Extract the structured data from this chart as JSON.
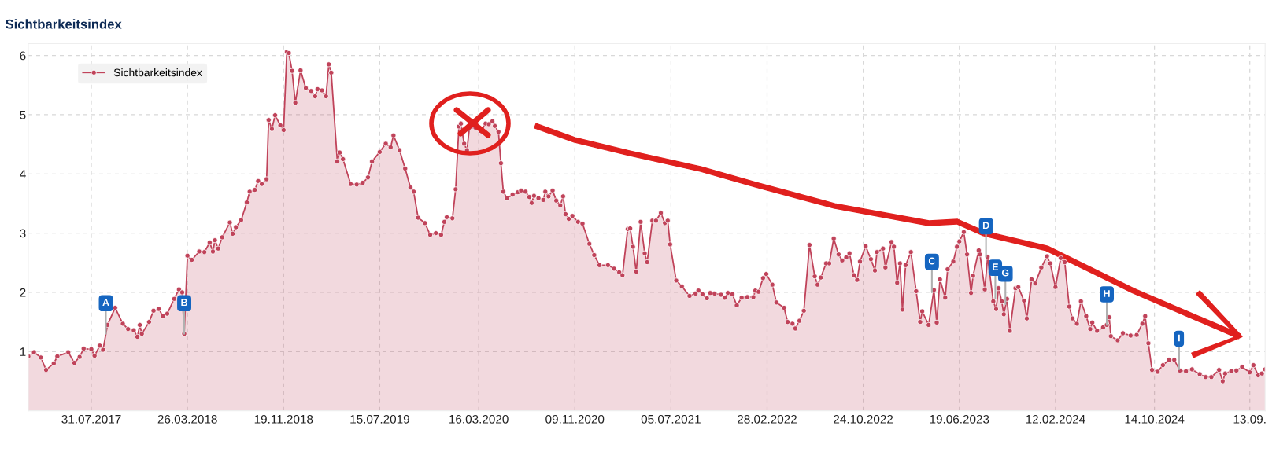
{
  "chart_data": {
    "type": "area",
    "title": "Sichtbarkeitsindex",
    "x": [
      "2017-02-25",
      "2017-03-11",
      "2017-03-28",
      "2017-04-10",
      "2017-04-29",
      "2017-05-08",
      "2017-06-04",
      "2017-06-19",
      "2017-07-02",
      "2017-07-12",
      "2017-07-31",
      "2017-08-08",
      "2017-08-21",
      "2017-08-29",
      "2017-09-09",
      "2017-09-28",
      "2017-10-17",
      "2017-10-30",
      "2017-11-13",
      "2017-11-22",
      "2017-11-28",
      "2017-12-03",
      "2017-12-21",
      "2018-01-01",
      "2018-01-14",
      "2018-01-24",
      "2018-02-04",
      "2018-02-21",
      "2018-03-05",
      "2018-03-13",
      "2018-03-18",
      "2018-03-26",
      "2018-04-06",
      "2018-04-24",
      "2018-05-07",
      "2018-05-20",
      "2018-05-28",
      "2018-06-02",
      "2018-06-10",
      "2018-06-20",
      "2018-07-09",
      "2018-07-16",
      "2018-07-24",
      "2018-08-06",
      "2018-08-20",
      "2018-08-27",
      "2018-09-09",
      "2018-09-17",
      "2018-09-26",
      "2018-10-08",
      "2018-10-13",
      "2018-10-21",
      "2018-10-29",
      "2018-11-11",
      "2018-11-19",
      "2018-11-27",
      "2018-12-02",
      "2018-12-10",
      "2018-12-18",
      "2018-12-31",
      "2019-01-13",
      "2019-01-26",
      "2019-02-05",
      "2019-02-11",
      "2019-02-22",
      "2019-03-04",
      "2019-03-11",
      "2019-03-17",
      "2019-04-01",
      "2019-04-07",
      "2019-04-15",
      "2019-05-04",
      "2019-05-19",
      "2019-06-03",
      "2019-06-16",
      "2019-06-26",
      "2019-07-15",
      "2019-07-30",
      "2019-08-11",
      "2019-08-18",
      "2019-09-02",
      "2019-09-16",
      "2019-09-29",
      "2019-10-07",
      "2019-10-18",
      "2019-11-04",
      "2019-11-17",
      "2019-12-01",
      "2019-12-14",
      "2019-12-22",
      "2019-12-28",
      "2020-01-11",
      "2020-01-19",
      "2020-01-27",
      "2020-02-01",
      "2020-02-09",
      "2020-02-16",
      "2020-02-22",
      "2020-03-08",
      "2020-03-22",
      "2020-04-02",
      "2020-04-10",
      "2020-04-19",
      "2020-04-25",
      "2020-05-04",
      "2020-05-10",
      "2020-05-16",
      "2020-05-25",
      "2020-06-08",
      "2020-06-21",
      "2020-06-29",
      "2020-07-10",
      "2020-07-19",
      "2020-07-25",
      "2020-07-31",
      "2020-08-11",
      "2020-08-23",
      "2020-08-28",
      "2020-09-05",
      "2020-09-15",
      "2020-09-24",
      "2020-10-04",
      "2020-10-11",
      "2020-10-17",
      "2020-10-25",
      "2020-11-03",
      "2020-11-17",
      "2020-11-28",
      "2020-12-15",
      "2020-12-27",
      "2021-01-09",
      "2021-01-30",
      "2021-02-14",
      "2021-02-27",
      "2021-03-07",
      "2021-03-20",
      "2021-03-26",
      "2021-04-02",
      "2021-04-10",
      "2021-04-21",
      "2021-05-01",
      "2021-05-07",
      "2021-05-20",
      "2021-05-29",
      "2021-06-10",
      "2021-06-20",
      "2021-06-27",
      "2021-07-03",
      "2021-07-18",
      "2021-08-01",
      "2021-08-20",
      "2021-09-04",
      "2021-09-11",
      "2021-09-21",
      "2021-10-02",
      "2021-10-10",
      "2021-10-21",
      "2021-11-06",
      "2021-11-15",
      "2021-11-23",
      "2021-12-04",
      "2021-12-15",
      "2021-12-27",
      "2022-01-10",
      "2022-01-25",
      "2022-01-30",
      "2022-02-07",
      "2022-02-18",
      "2022-02-26",
      "2022-03-13",
      "2022-03-23",
      "2022-04-11",
      "2022-04-20",
      "2022-05-02",
      "2022-05-09",
      "2022-05-19",
      "2022-05-30",
      "2022-06-13",
      "2022-06-26",
      "2022-07-03",
      "2022-07-11",
      "2022-07-24",
      "2022-08-01",
      "2022-08-12",
      "2022-08-24",
      "2022-09-02",
      "2022-09-12",
      "2022-09-20",
      "2022-10-01",
      "2022-10-09",
      "2022-10-16",
      "2022-10-30",
      "2022-11-12",
      "2022-11-22",
      "2022-11-27",
      "2022-12-12",
      "2022-12-18",
      "2023-01-02",
      "2023-01-08",
      "2023-01-16",
      "2023-01-23",
      "2023-01-29",
      "2023-02-06",
      "2023-02-19",
      "2023-03-04",
      "2023-03-14",
      "2023-03-19",
      "2023-04-04",
      "2023-04-17",
      "2023-04-24",
      "2023-05-02",
      "2023-05-15",
      "2023-05-21",
      "2023-06-04",
      "2023-06-13",
      "2023-06-19",
      "2023-06-30",
      "2023-07-08",
      "2023-07-18",
      "2023-07-23",
      "2023-08-06",
      "2023-08-09",
      "2023-08-21",
      "2023-08-28",
      "2023-09-11",
      "2023-09-18",
      "2023-09-24",
      "2023-10-02",
      "2023-10-07",
      "2023-10-15",
      "2023-10-22",
      "2023-11-05",
      "2023-11-12",
      "2023-11-26",
      "2023-12-03",
      "2023-12-15",
      "2023-12-24",
      "2024-01-08",
      "2024-01-22",
      "2024-01-30",
      "2024-02-12",
      "2024-02-25",
      "2024-03-06",
      "2024-03-17",
      "2024-03-25",
      "2024-04-05",
      "2024-04-15",
      "2024-04-28",
      "2024-05-08",
      "2024-05-13",
      "2024-05-25",
      "2024-06-09",
      "2024-06-18",
      "2024-06-24",
      "2024-06-28",
      "2024-07-15",
      "2024-07-28",
      "2024-08-16",
      "2024-08-31",
      "2024-09-14",
      "2024-09-21",
      "2024-09-29",
      "2024-10-08",
      "2024-10-22",
      "2024-11-04",
      "2024-11-19",
      "2024-12-02",
      "2024-12-16",
      "2024-12-31",
      "2025-01-15",
      "2025-02-03",
      "2025-02-18",
      "2025-03-04",
      "2025-03-23",
      "2025-04-01",
      "2025-04-07",
      "2025-04-22",
      "2025-05-05",
      "2025-05-19",
      "2025-06-07",
      "2025-06-16",
      "2025-06-28",
      "2025-07-07",
      "2025-07-15"
    ],
    "series": [
      {
        "name": "Sichtbarkeitsindex",
        "color": "#c0435a",
        "values": [
          0.92,
          0.99,
          0.9,
          0.69,
          0.8,
          0.92,
          0.99,
          0.81,
          0.91,
          1.05,
          1.04,
          0.93,
          1.1,
          1.03,
          1.45,
          1.74,
          1.47,
          1.38,
          1.36,
          1.25,
          1.45,
          1.3,
          1.5,
          1.69,
          1.72,
          1.6,
          1.64,
          1.89,
          2.05,
          2.0,
          1.3,
          2.62,
          2.55,
          2.69,
          2.68,
          2.84,
          2.69,
          2.88,
          2.74,
          2.93,
          3.18,
          2.99,
          3.1,
          3.22,
          3.52,
          3.7,
          3.73,
          3.88,
          3.83,
          3.91,
          4.91,
          4.76,
          4.99,
          4.82,
          4.74,
          6.06,
          6.04,
          5.74,
          5.2,
          5.75,
          5.45,
          5.4,
          5.31,
          5.43,
          5.41,
          5.31,
          5.85,
          5.71,
          4.21,
          4.36,
          4.25,
          3.83,
          3.82,
          3.85,
          3.94,
          4.21,
          4.37,
          4.51,
          4.45,
          4.65,
          4.4,
          4.09,
          3.77,
          3.7,
          3.26,
          3.17,
          2.97,
          3.0,
          2.97,
          3.19,
          3.27,
          3.25,
          3.74,
          4.8,
          4.85,
          4.51,
          4.4,
          4.78,
          4.78,
          4.72,
          4.85,
          4.84,
          4.89,
          4.81,
          4.71,
          4.18,
          3.7,
          3.59,
          3.65,
          3.69,
          3.72,
          3.7,
          3.61,
          3.51,
          3.63,
          3.59,
          3.56,
          3.7,
          3.62,
          3.72,
          3.55,
          3.47,
          3.62,
          3.32,
          3.24,
          3.29,
          3.19,
          3.16,
          2.82,
          2.63,
          2.46,
          2.46,
          2.4,
          2.34,
          2.29,
          3.07,
          3.08,
          2.77,
          2.35,
          3.19,
          2.66,
          2.51,
          3.21,
          3.21,
          3.34,
          3.17,
          3.21,
          2.81,
          2.2,
          2.1,
          1.94,
          1.98,
          2.03,
          1.97,
          1.9,
          1.99,
          1.98,
          1.96,
          1.91,
          1.99,
          1.97,
          1.78,
          1.91,
          1.92,
          1.92,
          2.03,
          2.01,
          2.24,
          2.31,
          2.13,
          1.83,
          1.74,
          1.5,
          1.47,
          1.39,
          1.52,
          1.69,
          2.8,
          2.27,
          2.13,
          2.25,
          2.49,
          2.49,
          2.91,
          2.64,
          2.54,
          2.59,
          2.66,
          2.29,
          2.21,
          2.52,
          2.78,
          2.56,
          2.37,
          2.68,
          2.74,
          2.42,
          2.85,
          2.77,
          2.16,
          2.49,
          1.71,
          2.46,
          2.68,
          2.02,
          1.5,
          1.68,
          1.45,
          2.04,
          1.49,
          2.22,
          1.91,
          2.39,
          2.52,
          2.77,
          2.86,
          3.02,
          2.64,
          1.99,
          2.28,
          2.71,
          2.64,
          2.05,
          2.6,
          1.85,
          1.72,
          2.07,
          1.85,
          1.63,
          1.89,
          1.35,
          2.07,
          2.09,
          1.86,
          1.56,
          2.22,
          2.15,
          2.42,
          2.61,
          2.49,
          2.09,
          2.58,
          2.51,
          1.76,
          1.56,
          1.47,
          1.85,
          1.6,
          1.38,
          1.49,
          1.35,
          1.41,
          1.45,
          1.58,
          1.26,
          1.19,
          1.31,
          1.27,
          1.28,
          1.47,
          1.6,
          1.14,
          0.69,
          0.66,
          0.77,
          0.86,
          0.86,
          0.68,
          0.67,
          0.7,
          0.62,
          0.57,
          0.57,
          0.69,
          0.5,
          0.63,
          0.67,
          0.68,
          0.74,
          0.65,
          0.77,
          0.6,
          0.63,
          0.7
        ]
      }
    ],
    "xlim": [
      "2017-02-25",
      "2025-07-15"
    ],
    "xticks": [
      {
        "value": "2017-07-31",
        "label": "31.07.2017"
      },
      {
        "value": "2018-03-26",
        "label": "26.03.2018"
      },
      {
        "value": "2018-11-19",
        "label": "19.11.2018"
      },
      {
        "value": "2019-07-15",
        "label": "15.07.2019"
      },
      {
        "value": "2020-03-16",
        "label": "16.03.2020"
      },
      {
        "value": "2020-11-09",
        "label": "09.11.2020"
      },
      {
        "value": "2021-07-05",
        "label": "05.07.2021"
      },
      {
        "value": "2022-02-28",
        "label": "28.02.2022"
      },
      {
        "value": "2022-10-24",
        "label": "24.10.2022"
      },
      {
        "value": "2023-06-19",
        "label": "19.06.2023"
      },
      {
        "value": "2024-02-12",
        "label": "12.02.2024"
      },
      {
        "value": "2024-10-14",
        "label": "14.10.2024"
      },
      {
        "value": "2025-06-07",
        "label": "13.09."
      }
    ],
    "ylim": [
      0,
      6.2
    ],
    "yticks": [
      1,
      2,
      3,
      4,
      5,
      6
    ],
    "annotations": [
      {
        "text": "A",
        "x": "2017-09-05",
        "y": 1.3
      },
      {
        "text": "B",
        "x": "2018-03-18",
        "y": 1.3
      },
      {
        "text": "C",
        "x": "2023-04-12",
        "y": 2.0
      },
      {
        "text": "D",
        "x": "2023-08-24",
        "y": 2.6
      },
      {
        "text": "E",
        "x": "2023-09-16",
        "y": 1.9
      },
      {
        "text": "G",
        "x": "2023-10-11",
        "y": 1.8
      },
      {
        "text": "H",
        "x": "2024-06-18",
        "y": 1.45
      },
      {
        "text": "I",
        "x": "2024-12-14",
        "y": 0.7
      }
    ],
    "grid": true,
    "legend": "top left",
    "marker": "circle",
    "line_style": "solid"
  }
}
